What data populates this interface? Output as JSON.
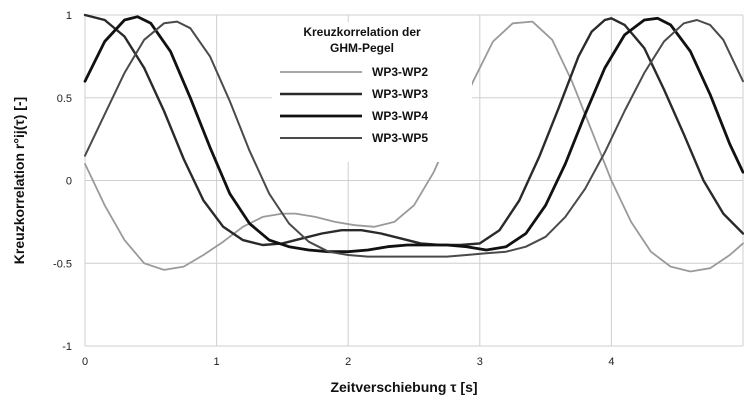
{
  "chart_data": {
    "type": "line",
    "title": "",
    "xlabel": "Zeitverschiebung  τ  [s]",
    "ylabel": "Kreuzkorrelation  r°ij(τ)  [-]",
    "xlim": [
      0,
      5
    ],
    "ylim": [
      -1,
      1
    ],
    "x_ticks": [
      "0",
      "1",
      "2",
      "3",
      "4"
    ],
    "y_ticks": [
      "1",
      "0.5",
      "0",
      "-0.5",
      "-1"
    ],
    "grid": true,
    "legend": {
      "title_line1": "Kreuzkorrelation der",
      "title_line2": "GHM-Pegel",
      "placement": "top-center"
    },
    "series": [
      {
        "name": "WP3-WP2",
        "color": "#9a9a9a",
        "x": [
          0,
          0.15,
          0.3,
          0.45,
          0.6,
          0.75,
          0.9,
          1.05,
          1.2,
          1.35,
          1.5,
          1.6,
          1.75,
          1.9,
          2.05,
          2.2,
          2.35,
          2.5,
          2.65,
          2.8,
          2.95,
          3.1,
          3.25,
          3.4,
          3.55,
          3.7,
          3.85,
          4.0,
          4.15,
          4.3,
          4.45,
          4.6,
          4.75,
          4.9,
          5.0
        ],
        "y": [
          0.1,
          -0.15,
          -0.36,
          -0.5,
          -0.54,
          -0.52,
          -0.45,
          -0.37,
          -0.28,
          -0.22,
          -0.2,
          -0.2,
          -0.22,
          -0.25,
          -0.27,
          -0.28,
          -0.25,
          -0.15,
          0.05,
          0.32,
          0.6,
          0.84,
          0.95,
          0.96,
          0.85,
          0.6,
          0.3,
          0.0,
          -0.25,
          -0.43,
          -0.52,
          -0.55,
          -0.53,
          -0.45,
          -0.38
        ]
      },
      {
        "name": "WP3-WP3",
        "color": "#2a2a2a",
        "x": [
          0,
          0.15,
          0.3,
          0.45,
          0.6,
          0.75,
          0.9,
          1.05,
          1.2,
          1.35,
          1.5,
          1.65,
          1.8,
          1.95,
          2.1,
          2.25,
          2.4,
          2.55,
          2.7,
          2.85,
          3.0,
          3.15,
          3.3,
          3.45,
          3.6,
          3.75,
          3.85,
          3.95,
          4.0,
          4.1,
          4.25,
          4.4,
          4.55,
          4.7,
          4.85,
          5.0
        ],
        "y": [
          1.0,
          0.97,
          0.87,
          0.68,
          0.42,
          0.13,
          -0.12,
          -0.28,
          -0.36,
          -0.39,
          -0.38,
          -0.35,
          -0.32,
          -0.3,
          -0.3,
          -0.32,
          -0.35,
          -0.38,
          -0.39,
          -0.39,
          -0.38,
          -0.3,
          -0.12,
          0.14,
          0.44,
          0.75,
          0.9,
          0.97,
          0.98,
          0.94,
          0.8,
          0.55,
          0.28,
          0.0,
          -0.2,
          -0.32
        ]
      },
      {
        "name": "WP3-WP4",
        "color": "#111111",
        "x": [
          0,
          0.15,
          0.3,
          0.4,
          0.5,
          0.65,
          0.8,
          0.95,
          1.1,
          1.25,
          1.4,
          1.55,
          1.7,
          1.85,
          2.0,
          2.15,
          2.3,
          2.45,
          2.6,
          2.75,
          2.9,
          3.05,
          3.2,
          3.35,
          3.5,
          3.65,
          3.8,
          3.95,
          4.1,
          4.25,
          4.35,
          4.45,
          4.6,
          4.75,
          4.9,
          5.0
        ],
        "y": [
          0.6,
          0.84,
          0.97,
          0.99,
          0.95,
          0.78,
          0.5,
          0.2,
          -0.08,
          -0.26,
          -0.36,
          -0.4,
          -0.42,
          -0.43,
          -0.43,
          -0.42,
          -0.4,
          -0.39,
          -0.39,
          -0.39,
          -0.4,
          -0.42,
          -0.4,
          -0.32,
          -0.15,
          0.1,
          0.4,
          0.68,
          0.88,
          0.97,
          0.98,
          0.94,
          0.78,
          0.52,
          0.22,
          0.05
        ]
      },
      {
        "name": "WP3-WP5",
        "color": "#4a4a4a",
        "x": [
          0,
          0.15,
          0.3,
          0.45,
          0.6,
          0.7,
          0.8,
          0.95,
          1.1,
          1.25,
          1.4,
          1.55,
          1.7,
          1.85,
          2.0,
          2.15,
          2.3,
          2.45,
          2.6,
          2.75,
          2.9,
          3.05,
          3.2,
          3.35,
          3.5,
          3.65,
          3.8,
          3.95,
          4.1,
          4.25,
          4.4,
          4.55,
          4.65,
          4.75,
          4.85,
          5.0
        ],
        "y": [
          0.15,
          0.4,
          0.65,
          0.85,
          0.95,
          0.96,
          0.92,
          0.75,
          0.48,
          0.18,
          -0.08,
          -0.26,
          -0.37,
          -0.43,
          -0.45,
          -0.46,
          -0.46,
          -0.46,
          -0.46,
          -0.46,
          -0.45,
          -0.44,
          -0.43,
          -0.4,
          -0.34,
          -0.22,
          -0.05,
          0.17,
          0.42,
          0.65,
          0.84,
          0.95,
          0.97,
          0.94,
          0.85,
          0.6
        ]
      }
    ]
  }
}
